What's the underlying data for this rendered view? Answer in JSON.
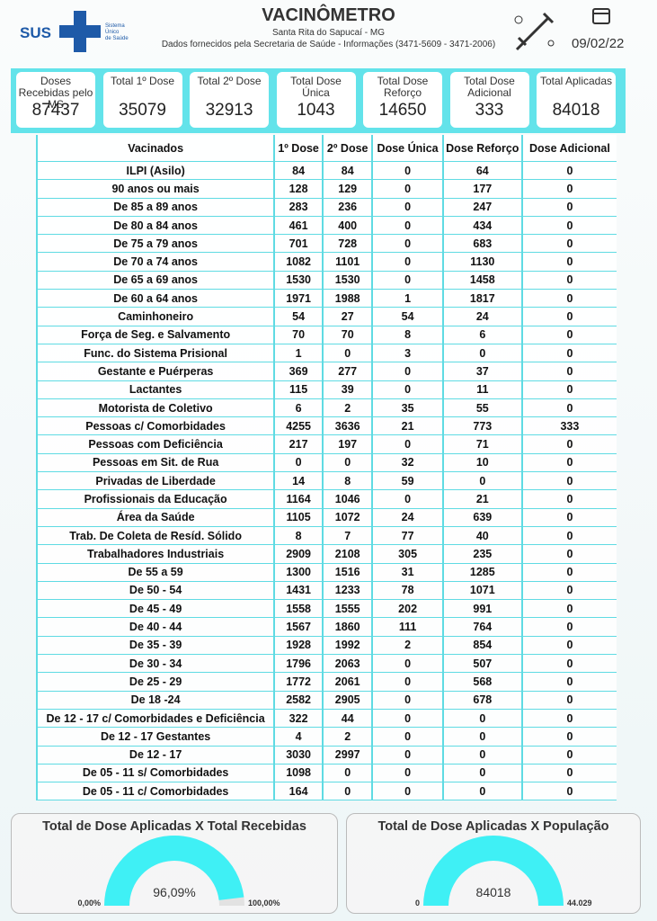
{
  "header": {
    "logo": {
      "text": "SUS",
      "lines": [
        "Sistema",
        "Único",
        "de Saúde"
      ]
    },
    "title": "VACINÔMETRO",
    "subtitle": "Santa Rita do Sapucaí - MG",
    "source": "Dados fornecidos pela Secretaria de Saúde - Informações (3471-5609 - 3471-2006)",
    "date": "09/02/22"
  },
  "cards": [
    {
      "label": "Doses Recebidas pelo MS",
      "value": 87437
    },
    {
      "label": "Total 1º Dose",
      "value": 35079
    },
    {
      "label": "Total 2º Dose",
      "value": 32913
    },
    {
      "label": "Total Dose Única",
      "value": 1043
    },
    {
      "label": "Total Dose Reforço",
      "value": 14650
    },
    {
      "label": "Total Dose Adicional",
      "value": 333
    },
    {
      "label": "Total Aplicadas",
      "value": 84018
    }
  ],
  "table": {
    "columns": [
      "Vacinados",
      "1º Dose",
      "2º Dose",
      "Dose Única",
      "Dose Reforço",
      "Dose Adicional"
    ],
    "rows": [
      [
        "ILPI (Asilo)",
        84,
        84,
        0,
        64,
        0
      ],
      [
        "90 anos ou mais",
        128,
        129,
        0,
        177,
        0
      ],
      [
        "De 85 a 89 anos",
        283,
        236,
        0,
        247,
        0
      ],
      [
        "De 80 a 84 anos",
        461,
        400,
        0,
        434,
        0
      ],
      [
        "De 75 a 79 anos",
        701,
        728,
        0,
        683,
        0
      ],
      [
        "De 70 a 74 anos",
        1082,
        1101,
        0,
        1130,
        0
      ],
      [
        "De 65 a 69 anos",
        1530,
        1530,
        0,
        1458,
        0
      ],
      [
        "De 60 a 64 anos",
        1971,
        1988,
        1,
        1817,
        0
      ],
      [
        "Caminhoneiro",
        54,
        27,
        54,
        24,
        0
      ],
      [
        "Força de Seg. e Salvamento",
        70,
        70,
        8,
        6,
        0
      ],
      [
        "Func. do Sistema Prisional",
        1,
        0,
        3,
        0,
        0
      ],
      [
        "Gestante e Puérperas",
        369,
        277,
        0,
        37,
        0
      ],
      [
        "Lactantes",
        115,
        39,
        0,
        11,
        0
      ],
      [
        "Motorista de Coletivo",
        6,
        2,
        35,
        55,
        0
      ],
      [
        "Pessoas c/ Comorbidades",
        4255,
        3636,
        21,
        773,
        333
      ],
      [
        "Pessoas com Deficiência",
        217,
        197,
        0,
        71,
        0
      ],
      [
        "Pessoas em Sit. de Rua",
        0,
        0,
        32,
        10,
        0
      ],
      [
        "Privadas de Liberdade",
        14,
        8,
        59,
        0,
        0
      ],
      [
        "Profissionais da Educação",
        1164,
        1046,
        0,
        21,
        0
      ],
      [
        "Área da Saúde",
        1105,
        1072,
        24,
        639,
        0
      ],
      [
        "Trab. De Coleta de Resíd. Sólido",
        8,
        7,
        77,
        40,
        0
      ],
      [
        "Trabalhadores Industriais",
        2909,
        2108,
        305,
        235,
        0
      ],
      [
        "De 55 a 59",
        1300,
        1516,
        31,
        1285,
        0
      ],
      [
        "De 50 - 54",
        1431,
        1233,
        78,
        1071,
        0
      ],
      [
        "De 45 - 49",
        1558,
        1555,
        202,
        991,
        0
      ],
      [
        "De 40 - 44",
        1567,
        1860,
        111,
        764,
        0
      ],
      [
        "De 35 - 39",
        1928,
        1992,
        2,
        854,
        0
      ],
      [
        "De 30 - 34",
        1796,
        2063,
        0,
        507,
        0
      ],
      [
        "De 25 - 29",
        1772,
        2061,
        0,
        568,
        0
      ],
      [
        "De 18 -24",
        2582,
        2905,
        0,
        678,
        0
      ],
      [
        "De 12 - 17 c/ Comorbidades e Deficiência",
        322,
        44,
        0,
        0,
        0
      ],
      [
        "De 12 - 17 Gestantes",
        4,
        2,
        0,
        0,
        0
      ],
      [
        "De 12 - 17",
        3030,
        2997,
        0,
        0,
        0
      ],
      [
        "De 05 - 11 s/ Comorbidades",
        1098,
        0,
        0,
        0,
        0
      ],
      [
        "De 05 - 11 c/ Comorbidades",
        164,
        0,
        0,
        0,
        0
      ]
    ]
  },
  "gauges": [
    {
      "title": "Total de Dose Aplicadas X Total Recebidas",
      "value": 96.09,
      "value_label": "96,09%",
      "min": 0,
      "min_label": "0,00%",
      "max": 100,
      "max_label": "100,00%"
    },
    {
      "title": "Total de Dose Aplicadas X População",
      "value": 84018,
      "min": 0,
      "max": 44029,
      "max_label": "44.029"
    }
  ]
}
